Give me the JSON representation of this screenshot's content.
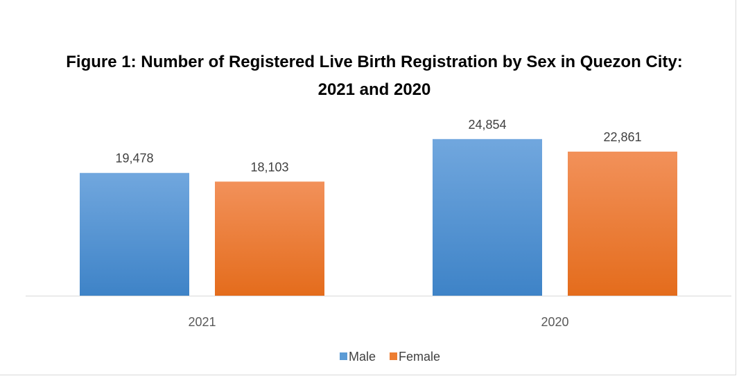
{
  "chart_data": {
    "type": "bar",
    "title": "Figure 1: Number of Registered Live Birth Registration by Sex in Quezon City: 2021 and 2020",
    "categories": [
      "2021",
      "2020"
    ],
    "series": [
      {
        "name": "Male",
        "color": "#5b9bd5",
        "values": [
          19478,
          24854
        ],
        "value_labels": [
          "19,478",
          "24,854"
        ]
      },
      {
        "name": "Female",
        "color": "#ed7d31",
        "values": [
          18103,
          22861
        ],
        "value_labels": [
          "18,103",
          "22,861"
        ]
      }
    ],
    "legend": "bottom"
  }
}
